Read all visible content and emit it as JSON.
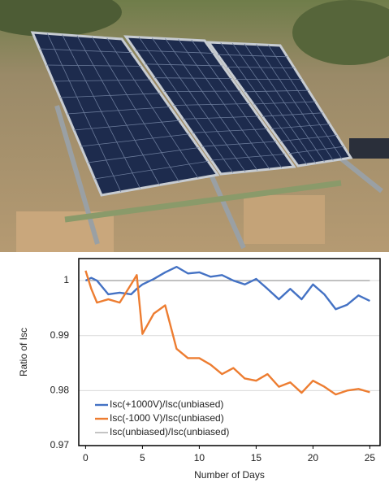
{
  "chart_data": {
    "type": "line",
    "xlabel": "Number of Days",
    "ylabel": "Ratio of Isc",
    "x": [
      0,
      0.5,
      1,
      2,
      3,
      4,
      4.5,
      5,
      6,
      7,
      8,
      9,
      10,
      11,
      12,
      13,
      14,
      15,
      16,
      17,
      18,
      19,
      20,
      21,
      22,
      23,
      24,
      25
    ],
    "series": [
      {
        "name": "Isc(+1000V)/Isc(unbiased)",
        "color": "#4472c4",
        "values": [
          1.0,
          1.0005,
          1.0,
          0.9975,
          0.9978,
          0.9975,
          0.9985,
          0.9993,
          1.0003,
          1.0015,
          1.0025,
          1.0013,
          1.0015,
          1.0007,
          1.001,
          1.0,
          0.9993,
          1.0003,
          0.9985,
          0.9966,
          0.9985,
          0.9966,
          0.9993,
          0.9975,
          0.9948,
          0.9956,
          0.9973,
          0.9963
        ]
      },
      {
        "name": "Isc(-1000 V)/Isc(unbiased)",
        "color": "#ed7d31",
        "values": [
          1.0018,
          0.9985,
          0.996,
          0.9966,
          0.996,
          0.9993,
          1.001,
          0.9903,
          0.994,
          0.9955,
          0.9876,
          0.9859,
          0.9859,
          0.9847,
          0.983,
          0.9841,
          0.9822,
          0.9818,
          0.983,
          0.9807,
          0.9815,
          0.9796,
          0.9818,
          0.9807,
          0.9793,
          0.98,
          0.9803,
          0.9797
        ]
      },
      {
        "name": "Isc(unbiased)/Isc(unbiased)",
        "color": "#a5a5a5",
        "values": [
          1,
          1,
          1,
          1,
          1,
          1,
          1,
          1,
          1,
          1,
          1,
          1,
          1,
          1,
          1,
          1,
          1,
          1,
          1,
          1,
          1,
          1,
          1,
          1,
          1,
          1,
          1,
          1
        ]
      }
    ],
    "xlim": [
      -0.6,
      25.9
    ],
    "xticks": [
      0,
      5,
      10,
      15,
      20,
      25
    ],
    "ylim": [
      0.97,
      1.004
    ],
    "yticks": [
      0.97,
      0.98,
      0.99,
      1
    ],
    "grid": true,
    "legend": "lower-left"
  }
}
